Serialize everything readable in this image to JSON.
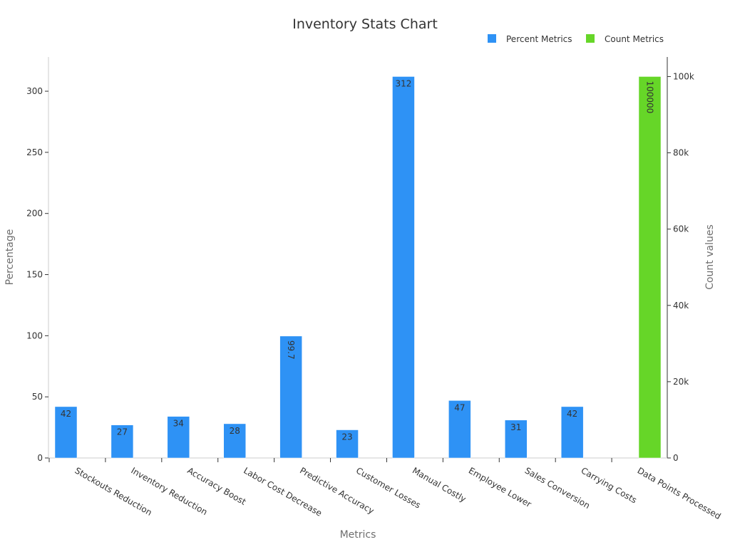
{
  "chart_data": {
    "type": "bar",
    "title": "Inventory Stats Chart",
    "xlabel": "Metrics",
    "ylabel": "Percentage",
    "y2label": "Count values",
    "categories": [
      "Stockouts Reduction",
      "Inventory Reduction",
      "Accuracy Boost",
      "Labor Cost Decrease",
      "Predictive Accuracy",
      "Customer Losses",
      "Manual Costly",
      "Employee Lower",
      "Sales Conversion",
      "Carrying Costs",
      "Data Points Processed"
    ],
    "series": [
      {
        "name": "Percent Metrics",
        "axis": "left",
        "color": "#2e92f5",
        "values": [
          42,
          27,
          34,
          28,
          99.7,
          23,
          312,
          47,
          31,
          42,
          null
        ],
        "labels": [
          "42",
          "27",
          "34",
          "28",
          "99.7",
          "23",
          "312",
          "47",
          "31",
          "42",
          ""
        ]
      },
      {
        "name": "Count Metrics",
        "axis": "right",
        "color": "#66d628",
        "values": [
          null,
          null,
          null,
          null,
          null,
          null,
          null,
          null,
          null,
          null,
          100000
        ],
        "labels": [
          "",
          "",
          "",
          "",
          "",
          "",
          "",
          "",
          "",
          "",
          "100000"
        ]
      }
    ],
    "ylim": [
      0,
      328
    ],
    "yticks": [
      0,
      50,
      100,
      150,
      200,
      250,
      300
    ],
    "y2lim": [
      0,
      105128
    ],
    "y2ticks": [
      0,
      20000,
      40000,
      60000,
      80000,
      100000
    ],
    "y2tick_labels": [
      "0",
      "20k",
      "40k",
      "60k",
      "80k",
      "100k"
    ],
    "legend": "top-right",
    "grid": false
  }
}
